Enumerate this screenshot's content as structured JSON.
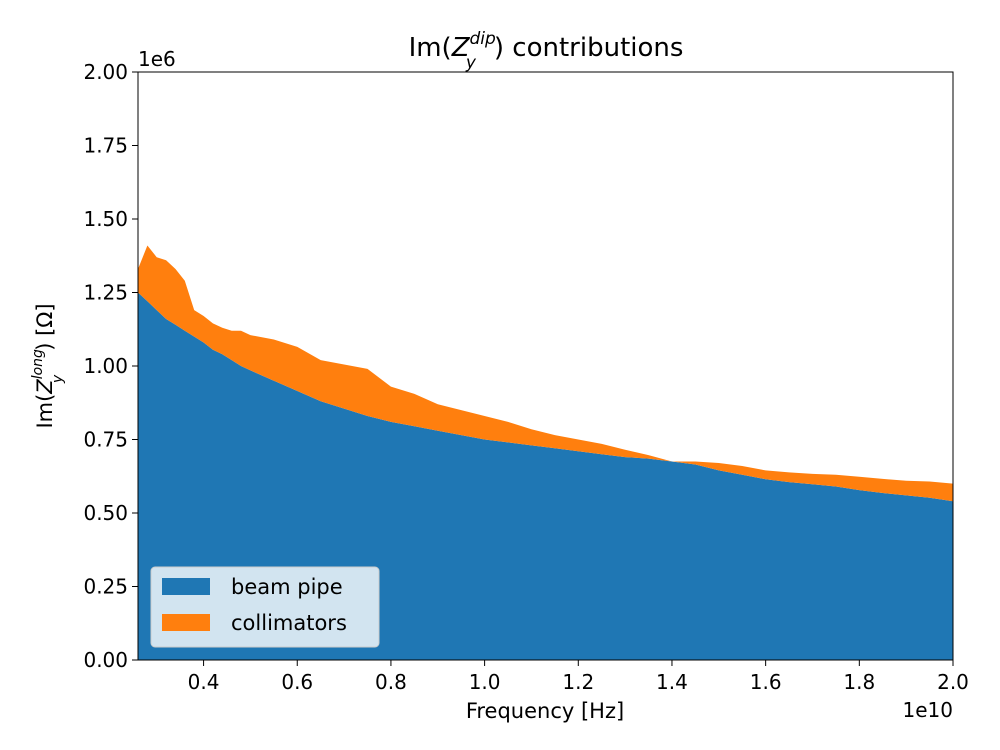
{
  "chart_data": {
    "type": "area",
    "title_main": "Im(",
    "title_var": "Z",
    "title_sub": "y",
    "title_sup": "dip",
    "title_tail": ") contributions",
    "xlabel": "Frequency [Hz]",
    "ylabel_main": "Im(",
    "ylabel_var": "Z",
    "ylabel_sub": "y",
    "ylabel_sup": "long",
    "ylabel_tail": ") [Ω]",
    "x_offset_label": "1e10",
    "y_offset_label": "1e6",
    "xlim": [
      0.26,
      2.0
    ],
    "ylim": [
      0,
      2.0
    ],
    "x_scale": 10000000000.0,
    "y_scale": 1000000.0,
    "x_ticks": [
      "0.4",
      "0.6",
      "0.8",
      "1.0",
      "1.2",
      "1.4",
      "1.6",
      "1.8",
      "2.0"
    ],
    "y_ticks": [
      "0.00",
      "0.25",
      "0.50",
      "0.75",
      "1.00",
      "1.25",
      "1.50",
      "1.75",
      "2.00"
    ],
    "legend_position": "lower-left",
    "stacked": true,
    "x": [
      0.26,
      0.28,
      0.3,
      0.32,
      0.34,
      0.36,
      0.38,
      0.4,
      0.42,
      0.44,
      0.46,
      0.48,
      0.5,
      0.55,
      0.6,
      0.65,
      0.7,
      0.75,
      0.8,
      0.85,
      0.9,
      0.95,
      1.0,
      1.05,
      1.1,
      1.15,
      1.2,
      1.25,
      1.3,
      1.35,
      1.4,
      1.45,
      1.5,
      1.55,
      1.6,
      1.65,
      1.7,
      1.75,
      1.8,
      1.85,
      1.9,
      1.95,
      2.0
    ],
    "series": [
      {
        "name": "beam pipe",
        "color": "#1f77b4",
        "values": [
          1.25,
          1.22,
          1.19,
          1.16,
          1.14,
          1.12,
          1.1,
          1.08,
          1.055,
          1.04,
          1.02,
          1.0,
          0.985,
          0.95,
          0.915,
          0.88,
          0.855,
          0.83,
          0.81,
          0.795,
          0.78,
          0.765,
          0.75,
          0.74,
          0.73,
          0.72,
          0.71,
          0.7,
          0.69,
          0.685,
          0.675,
          0.665,
          0.645,
          0.63,
          0.615,
          0.605,
          0.598,
          0.59,
          0.578,
          0.568,
          0.56,
          0.552,
          0.54
        ]
      },
      {
        "name": "collimators",
        "color": "#ff7f0e",
        "values": [
          0.08,
          0.19,
          0.18,
          0.2,
          0.19,
          0.17,
          0.09,
          0.09,
          0.09,
          0.09,
          0.1,
          0.12,
          0.12,
          0.14,
          0.15,
          0.14,
          0.15,
          0.16,
          0.12,
          0.11,
          0.09,
          0.085,
          0.08,
          0.07,
          0.055,
          0.045,
          0.04,
          0.035,
          0.025,
          0.012,
          0.0,
          0.01,
          0.025,
          0.03,
          0.03,
          0.033,
          0.035,
          0.04,
          0.045,
          0.048,
          0.05,
          0.055,
          0.06
        ]
      }
    ]
  }
}
